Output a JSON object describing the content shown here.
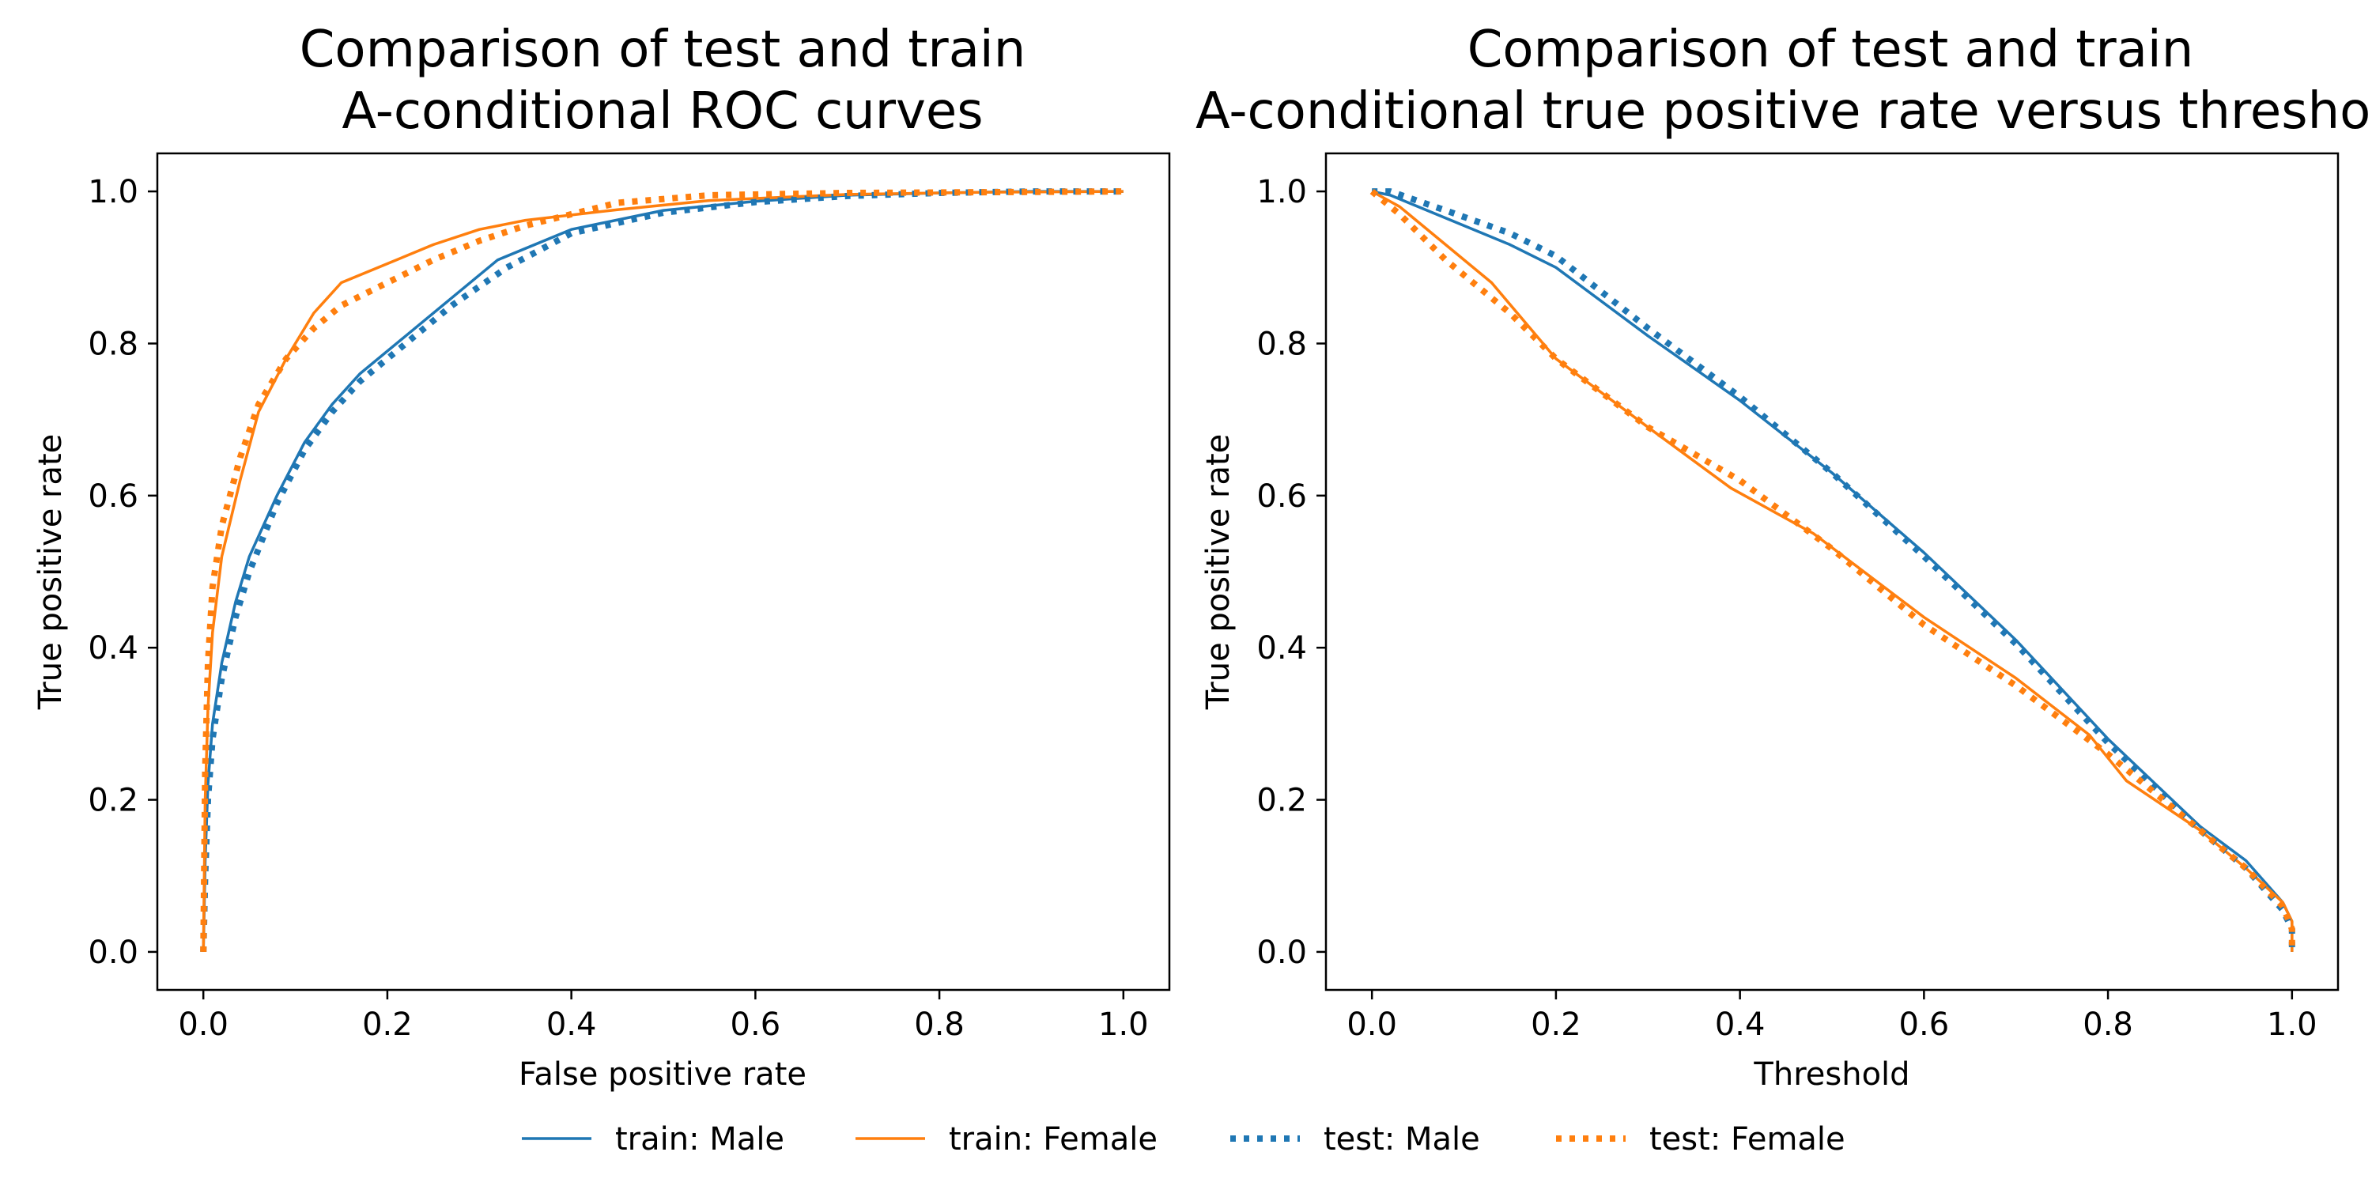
{
  "chart_data": [
    {
      "type": "line",
      "title_line1": "Comparison of test and train",
      "title_line2": "A-conditional ROC curves",
      "xlabel": "False positive rate",
      "ylabel": "True positive rate",
      "xlim": [
        -0.05,
        1.05
      ],
      "ylim": [
        -0.05,
        1.05
      ],
      "xticks": [
        "0.0",
        "0.2",
        "0.4",
        "0.6",
        "0.8",
        "1.0"
      ],
      "yticks": [
        "0.0",
        "0.2",
        "0.4",
        "0.6",
        "0.8",
        "1.0"
      ],
      "grid": false,
      "series": [
        {
          "name": "train: Male",
          "color": "#1f77b4",
          "style": "solid",
          "x": [
            0,
            0.002,
            0.005,
            0.01,
            0.02,
            0.035,
            0.05,
            0.08,
            0.11,
            0.14,
            0.17,
            0.22,
            0.27,
            0.32,
            0.4,
            0.5,
            0.6,
            0.7,
            0.8,
            0.9,
            1.0
          ],
          "y": [
            0,
            0.12,
            0.22,
            0.3,
            0.38,
            0.46,
            0.52,
            0.6,
            0.67,
            0.72,
            0.76,
            0.81,
            0.86,
            0.91,
            0.95,
            0.975,
            0.987,
            0.995,
            0.998,
            1.0,
            1.0
          ]
        },
        {
          "name": "train: Female",
          "color": "#ff7f0e",
          "style": "solid",
          "x": [
            0,
            0.002,
            0.005,
            0.01,
            0.02,
            0.04,
            0.06,
            0.09,
            0.12,
            0.15,
            0.2,
            0.25,
            0.3,
            0.35,
            0.45,
            0.55,
            0.7,
            0.85,
            1.0
          ],
          "y": [
            0,
            0.2,
            0.32,
            0.42,
            0.52,
            0.62,
            0.71,
            0.78,
            0.84,
            0.88,
            0.905,
            0.93,
            0.95,
            0.962,
            0.976,
            0.988,
            0.996,
            0.999,
            1.0
          ]
        },
        {
          "name": "test: Male",
          "color": "#1f77b4",
          "style": "dotted",
          "x": [
            0,
            0.002,
            0.005,
            0.01,
            0.02,
            0.035,
            0.05,
            0.08,
            0.11,
            0.14,
            0.17,
            0.22,
            0.27,
            0.33,
            0.4,
            0.5,
            0.6,
            0.7,
            0.8,
            0.9,
            1.0
          ],
          "y": [
            0,
            0.1,
            0.2,
            0.28,
            0.36,
            0.44,
            0.5,
            0.59,
            0.66,
            0.71,
            0.75,
            0.8,
            0.85,
            0.9,
            0.945,
            0.972,
            0.986,
            0.994,
            0.998,
            1.0,
            1.0
          ]
        },
        {
          "name": "test: Female",
          "color": "#ff7f0e",
          "style": "dotted",
          "x": [
            0,
            0.002,
            0.005,
            0.01,
            0.02,
            0.04,
            0.06,
            0.09,
            0.12,
            0.15,
            0.2,
            0.25,
            0.3,
            0.35,
            0.45,
            0.55,
            0.7,
            0.85,
            1.0
          ],
          "y": [
            0,
            0.24,
            0.38,
            0.48,
            0.56,
            0.65,
            0.72,
            0.78,
            0.82,
            0.85,
            0.88,
            0.91,
            0.935,
            0.955,
            0.985,
            0.995,
            0.998,
            0.999,
            1.0
          ]
        }
      ]
    },
    {
      "type": "line",
      "title_line1": "Comparison of test and train",
      "title_line2": "A-conditional true positive rate versus threshold",
      "xlabel": "Threshold",
      "ylabel": "True positive rate",
      "xlim": [
        -0.05,
        1.05
      ],
      "ylim": [
        -0.05,
        1.05
      ],
      "xticks": [
        "0.0",
        "0.2",
        "0.4",
        "0.6",
        "0.8",
        "1.0"
      ],
      "yticks": [
        "0.0",
        "0.2",
        "0.4",
        "0.6",
        "0.8",
        "1.0"
      ],
      "grid": false,
      "series": [
        {
          "name": "train: Male",
          "color": "#1f77b4",
          "style": "solid",
          "x": [
            0,
            0.02,
            0.08,
            0.15,
            0.2,
            0.3,
            0.4,
            0.5,
            0.6,
            0.7,
            0.8,
            0.9,
            0.95,
            0.99,
            1.0,
            1.0
          ],
          "y": [
            1.0,
            0.995,
            0.965,
            0.93,
            0.9,
            0.81,
            0.725,
            0.63,
            0.525,
            0.41,
            0.28,
            0.165,
            0.12,
            0.065,
            0.04,
            0.0
          ]
        },
        {
          "name": "train: Female",
          "color": "#ff7f0e",
          "style": "solid",
          "x": [
            0,
            0.03,
            0.13,
            0.2,
            0.3,
            0.39,
            0.48,
            0.6,
            0.7,
            0.78,
            0.82,
            0.9,
            0.95,
            0.99,
            1.0,
            1.0
          ],
          "y": [
            1.0,
            0.98,
            0.88,
            0.78,
            0.69,
            0.61,
            0.55,
            0.44,
            0.36,
            0.285,
            0.225,
            0.16,
            0.11,
            0.065,
            0.04,
            0.0
          ]
        },
        {
          "name": "test: Male",
          "color": "#1f77b4",
          "style": "dotted",
          "x": [
            0,
            0.02,
            0.08,
            0.15,
            0.2,
            0.3,
            0.4,
            0.5,
            0.6,
            0.7,
            0.8,
            0.9,
            0.95,
            0.99,
            1.0,
            1.0
          ],
          "y": [
            1.0,
            1.0,
            0.975,
            0.945,
            0.915,
            0.82,
            0.73,
            0.63,
            0.52,
            0.405,
            0.275,
            0.16,
            0.11,
            0.055,
            0.03,
            0.0
          ]
        },
        {
          "name": "test: Female",
          "color": "#ff7f0e",
          "style": "dotted",
          "x": [
            0,
            0.03,
            0.08,
            0.15,
            0.2,
            0.3,
            0.4,
            0.5,
            0.6,
            0.7,
            0.8,
            0.9,
            0.95,
            0.99,
            1.0,
            1.0
          ],
          "y": [
            1.0,
            0.97,
            0.91,
            0.84,
            0.78,
            0.69,
            0.62,
            0.53,
            0.43,
            0.35,
            0.26,
            0.16,
            0.11,
            0.06,
            0.03,
            0.0
          ]
        }
      ]
    }
  ],
  "legend": {
    "placement": "bottom-center",
    "entries": [
      {
        "label": "train: Male",
        "color": "#1f77b4",
        "style": "solid"
      },
      {
        "label": "train: Female",
        "color": "#ff7f0e",
        "style": "solid"
      },
      {
        "label": "test: Male",
        "color": "#1f77b4",
        "style": "dotted"
      },
      {
        "label": "test: Female",
        "color": "#ff7f0e",
        "style": "dotted"
      }
    ]
  }
}
